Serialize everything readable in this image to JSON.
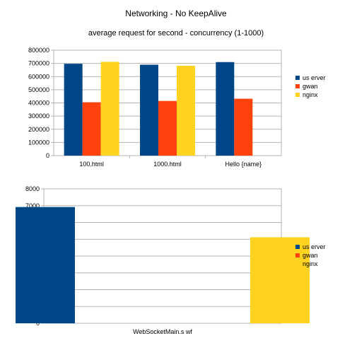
{
  "title": "Networking - No KeepAlive",
  "subtitle": "average request for second - concurrency (1-1000)",
  "chart_data": [
    {
      "type": "bar",
      "categories": [
        "100.html",
        "1000.html",
        "Hello {name}"
      ],
      "series": [
        {
          "name": "us erver",
          "color": "#004586",
          "values": [
            697000,
            690000,
            710000
          ]
        },
        {
          "name": "gwan",
          "color": "#ff420e",
          "values": [
            405000,
            415000,
            432000
          ]
        },
        {
          "name": "nginx",
          "color": "#ffd320",
          "values": [
            712000,
            682000,
            null
          ]
        }
      ],
      "ylim": [
        0,
        800000
      ],
      "yticks": [
        "0",
        "100000",
        "200000",
        "300000",
        "400000",
        "500000",
        "600000",
        "700000",
        "800000"
      ],
      "grid": true,
      "legend": "right"
    },
    {
      "type": "bar",
      "categories": [
        "WebSocketMain.s wf"
      ],
      "series": [
        {
          "name": "us erver",
          "color": "#004586",
          "values": [
            6920
          ]
        },
        {
          "name": "gwan",
          "color": "#ff420e",
          "values": [
            null
          ]
        },
        {
          "name": "nginx",
          "color": "#ffd320",
          "values": [
            5120
          ]
        }
      ],
      "ylim": [
        0,
        8000
      ],
      "yticks": [
        "0",
        "1000",
        "2000",
        "3000",
        "4000",
        "5000",
        "6000",
        "7000",
        "8000"
      ],
      "grid": true,
      "legend": "right"
    }
  ]
}
